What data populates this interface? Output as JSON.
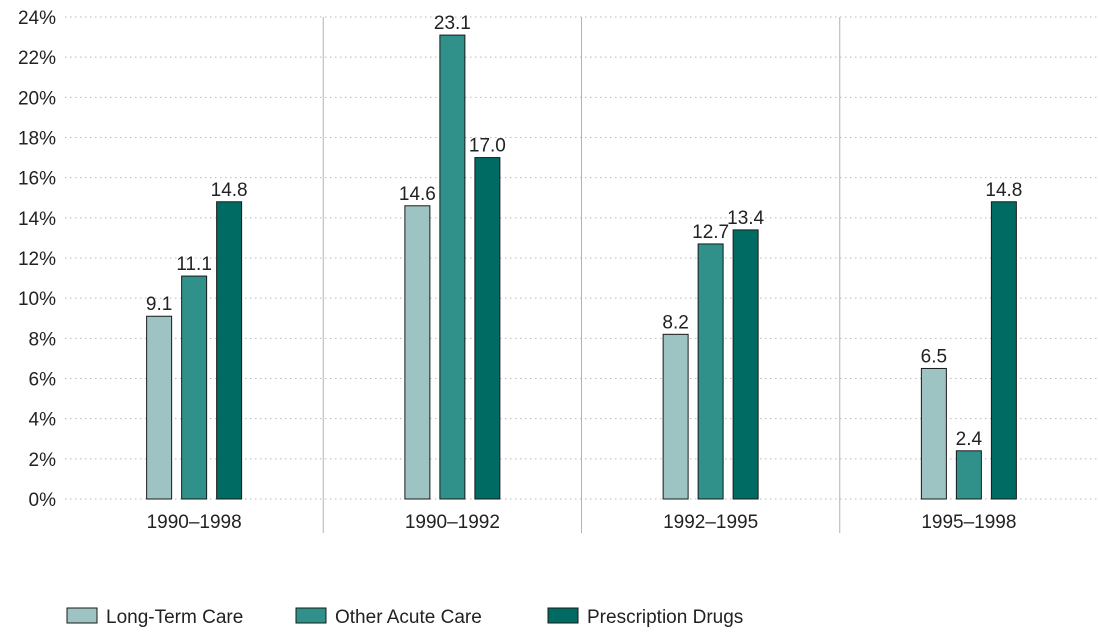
{
  "chart_data": {
    "type": "bar",
    "categories": [
      "1990–1998",
      "1990–1992",
      "1992–1995",
      "1995–1998"
    ],
    "series": [
      {
        "name": "Long-Term Care",
        "values": [
          9.1,
          14.6,
          8.2,
          6.5
        ],
        "color": "#9dc4c3"
      },
      {
        "name": "Other Acute Care",
        "values": [
          11.1,
          23.1,
          12.7,
          2.4
        ],
        "color": "#2f918a"
      },
      {
        "name": "Prescription Drugs",
        "values": [
          14.8,
          17.0,
          13.4,
          14.8
        ],
        "color": "#006b63"
      }
    ],
    "data_labels": [
      [
        "9.1",
        "14.6",
        "8.2",
        "6.5"
      ],
      [
        "11.1",
        "23.1",
        "12.7",
        "2.4"
      ],
      [
        "14.8",
        "17.0",
        "13.4",
        "14.8"
      ]
    ],
    "y_ticks": [
      "0%",
      "2%",
      "4%",
      "6%",
      "8%",
      "10%",
      "12%",
      "14%",
      "16%",
      "18%",
      "20%",
      "22%",
      "24%"
    ],
    "ylim": [
      0,
      24
    ],
    "title": "",
    "xlabel": "",
    "ylabel": "",
    "grid": "dotted horizontal",
    "legend_position": "bottom-left"
  }
}
